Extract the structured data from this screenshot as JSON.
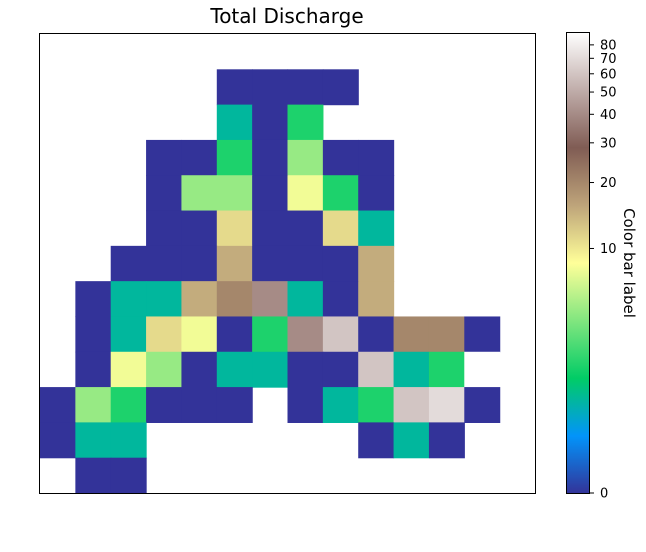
{
  "chart_data": {
    "type": "heatmap",
    "title": "Total Discharge",
    "xlabel": "",
    "ylabel": "",
    "grid": false,
    "rows": 13,
    "cols": 14,
    "note_missing": "null marks empty (white) cells",
    "values": [
      [
        null,
        null,
        null,
        null,
        null,
        null,
        null,
        null,
        null,
        null,
        null,
        null,
        null,
        null
      ],
      [
        null,
        null,
        null,
        null,
        null,
        0,
        0,
        0,
        0,
        null,
        null,
        null,
        null,
        null
      ],
      [
        null,
        null,
        null,
        null,
        null,
        1.5,
        0,
        2.5,
        null,
        null,
        null,
        null,
        null,
        null
      ],
      [
        null,
        null,
        null,
        0,
        0,
        2.5,
        0,
        5,
        0,
        0,
        null,
        null,
        null,
        null
      ],
      [
        null,
        null,
        null,
        0,
        5,
        5,
        0,
        8,
        2.5,
        0,
        null,
        null,
        null,
        null
      ],
      [
        null,
        null,
        null,
        0,
        0,
        11,
        0,
        0,
        11,
        1.5,
        null,
        null,
        null,
        null
      ],
      [
        null,
        null,
        0,
        0,
        0,
        15,
        0,
        0,
        0,
        15,
        null,
        null,
        null,
        null
      ],
      [
        null,
        0,
        1.5,
        1.5,
        15,
        20,
        40,
        1.5,
        0,
        15,
        null,
        null,
        null,
        null
      ],
      [
        null,
        0,
        1.5,
        11,
        8,
        0,
        2.5,
        40,
        60,
        0,
        20,
        20,
        0,
        null
      ],
      [
        null,
        0,
        8,
        5,
        0,
        1.5,
        1.5,
        0,
        0,
        60,
        1.5,
        2.5,
        90,
        null
      ],
      [
        0,
        5,
        2.5,
        0,
        0,
        0,
        null,
        0,
        1.5,
        2.5,
        60,
        70,
        0,
        null
      ],
      [
        0,
        1.5,
        1.5,
        null,
        null,
        null,
        null,
        null,
        null,
        0,
        1.5,
        0,
        null,
        null
      ],
      [
        null,
        0,
        0,
        null,
        null,
        null,
        null,
        null,
        null,
        null,
        null,
        null,
        null,
        null
      ]
    ],
    "colorbar": {
      "label": "Color bar label",
      "ticks": [
        0,
        10,
        20,
        30,
        40,
        50,
        60,
        70,
        80
      ],
      "tick_labels": [
        "0",
        "10",
        "20",
        "30",
        "40",
        "50",
        "60",
        "70",
        "80"
      ],
      "vmin": 0,
      "vmax": 90,
      "scale": "symlog",
      "colormap": "terrain",
      "colormap_stops": [
        "#333399",
        "#0294fa",
        "#01cc66",
        "#81e67f",
        "#ffff99",
        "#bea47a",
        "#805c54",
        "#c0adaa",
        "#ffffff"
      ]
    }
  }
}
